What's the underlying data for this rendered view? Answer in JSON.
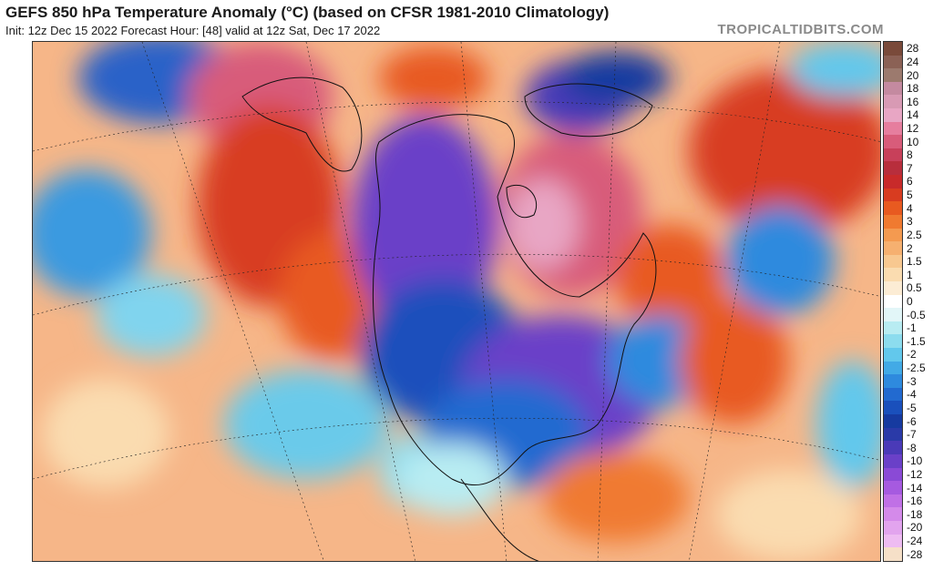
{
  "header": {
    "title": "GEFS 850 hPa Temperature Anomaly (°C) (based on CFSR 1981-2010 Climatology)",
    "subtitle": "Init: 12z Dec 15 2022   Forecast Hour: [48]   valid at 12z Sat, Dec 17 2022",
    "brand": "TROPICALTIDBITS.COM"
  },
  "legend": {
    "items": [
      {
        "label": "28",
        "color": "#7a4a3a"
      },
      {
        "label": "24",
        "color": "#8b6155"
      },
      {
        "label": "20",
        "color": "#9c7a6e"
      },
      {
        "label": "18",
        "color": "#c48aa0"
      },
      {
        "label": "16",
        "color": "#d89ab4"
      },
      {
        "label": "14",
        "color": "#e8a6c4"
      },
      {
        "label": "12",
        "color": "#e67e9e"
      },
      {
        "label": "10",
        "color": "#d85c7a"
      },
      {
        "label": "8",
        "color": "#c8405a"
      },
      {
        "label": "7",
        "color": "#b82e3c"
      },
      {
        "label": "6",
        "color": "#c82a2a"
      },
      {
        "label": "5",
        "color": "#d83c20"
      },
      {
        "label": "4",
        "color": "#e85a20"
      },
      {
        "label": "3",
        "color": "#f07a30"
      },
      {
        "label": "2.5",
        "color": "#f49a50"
      },
      {
        "label": "2",
        "color": "#f6b070"
      },
      {
        "label": "1.5",
        "color": "#f8c890"
      },
      {
        "label": "1",
        "color": "#fadcb0"
      },
      {
        "label": "0.5",
        "color": "#fcecd4"
      },
      {
        "label": "0",
        "color": "#ffffff"
      },
      {
        "label": "-0.5",
        "color": "#e2f6f8"
      },
      {
        "label": "-1",
        "color": "#b8ecf2"
      },
      {
        "label": "-1.5",
        "color": "#8cdcee"
      },
      {
        "label": "-2",
        "color": "#62c8ec"
      },
      {
        "label": "-2.5",
        "color": "#42aae6"
      },
      {
        "label": "-3",
        "color": "#2e8ade"
      },
      {
        "label": "-4",
        "color": "#226ad0"
      },
      {
        "label": "-5",
        "color": "#1a50bc"
      },
      {
        "label": "-6",
        "color": "#163aa0"
      },
      {
        "label": "-7",
        "color": "#2a3aa8"
      },
      {
        "label": "-8",
        "color": "#4a3ab8"
      },
      {
        "label": "-10",
        "color": "#6a40c8"
      },
      {
        "label": "-12",
        "color": "#8a4ad6"
      },
      {
        "label": "-14",
        "color": "#a65ae0"
      },
      {
        "label": "-16",
        "color": "#c070e6"
      },
      {
        "label": "-18",
        "color": "#d48aea"
      },
      {
        "label": "-20",
        "color": "#e2a4ee"
      },
      {
        "label": "-24",
        "color": "#eebcf2"
      },
      {
        "label": "-28",
        "color": "#f6e0c8"
      }
    ]
  }
}
